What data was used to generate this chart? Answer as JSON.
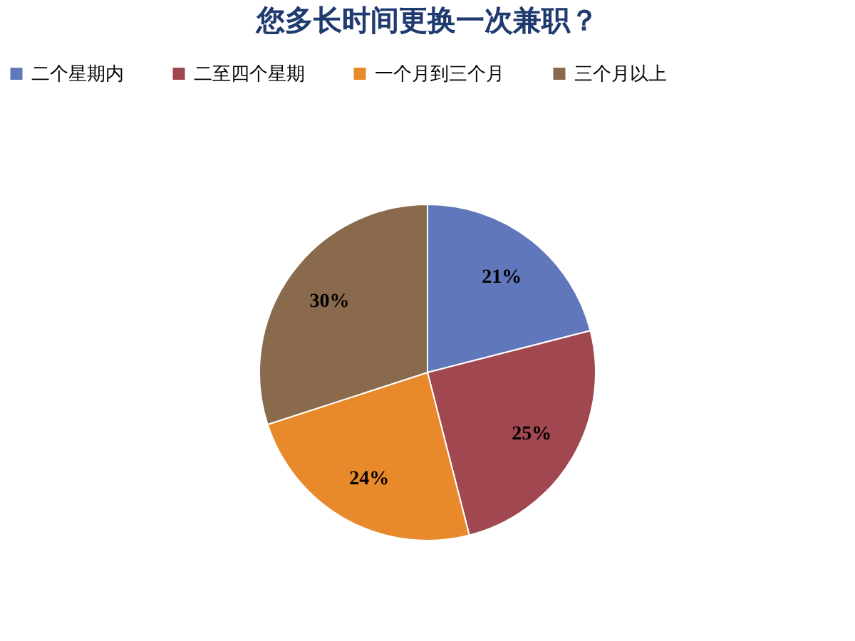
{
  "chart_data": {
    "type": "pie",
    "title": "您多长时间更换一次兼职？",
    "categories": [
      "二个星期内",
      "二至四个星期",
      "一个月到三个月",
      "三个月以上"
    ],
    "values": [
      21,
      25,
      24,
      30
    ],
    "colors": [
      "#6078bb",
      "#a0474f",
      "#e8892b",
      "#8a6a4c"
    ],
    "value_labels": [
      "21%",
      "25%",
      "24%",
      "30%"
    ],
    "legend": "top"
  }
}
